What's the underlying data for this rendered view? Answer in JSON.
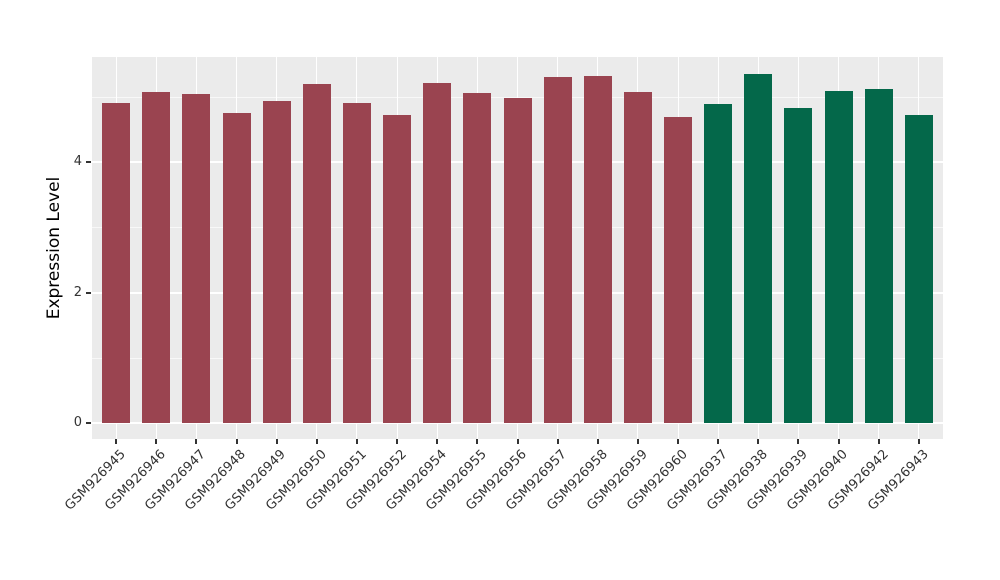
{
  "chart_data": {
    "type": "bar",
    "title": "",
    "xlabel": "",
    "ylabel": "Expression Level",
    "categories": [
      "GSM926945",
      "GSM926946",
      "GSM926947",
      "GSM926948",
      "GSM926949",
      "GSM926950",
      "GSM926951",
      "GSM926952",
      "GSM926954",
      "GSM926955",
      "GSM926956",
      "GSM926957",
      "GSM926958",
      "GSM926959",
      "GSM926960",
      "GSM926937",
      "GSM926938",
      "GSM926939",
      "GSM926940",
      "GSM926942",
      "GSM926943"
    ],
    "values": [
      4.91,
      5.08,
      5.04,
      4.76,
      4.94,
      5.2,
      4.91,
      4.72,
      5.21,
      5.06,
      4.98,
      5.3,
      5.32,
      5.08,
      4.7,
      4.89,
      5.35,
      4.83,
      5.1,
      5.13,
      4.72
    ],
    "bar_colors": [
      "#9A4450",
      "#9A4450",
      "#9A4450",
      "#9A4450",
      "#9A4450",
      "#9A4450",
      "#9A4450",
      "#9A4450",
      "#9A4450",
      "#9A4450",
      "#9A4450",
      "#9A4450",
      "#9A4450",
      "#9A4450",
      "#9A4450",
      "#04684A",
      "#04684A",
      "#04684A",
      "#04684A",
      "#04684A",
      "#04684A"
    ],
    "group_colors": {
      "group1_red": "#9A4450",
      "group2_green": "#04684A"
    },
    "yticks": [
      0,
      2,
      4
    ],
    "ytick_labels": [
      "0",
      "2",
      "4"
    ],
    "yminor_ticks": [
      1,
      3,
      5
    ],
    "ylim": [
      0,
      5.61
    ],
    "bar_width_fraction": 0.7,
    "legend_position": "none",
    "grid": true,
    "panel_background": "#EBEBEB",
    "grid_color": "#FFFFFF",
    "axis_text_color": "#333333",
    "axis_title_color": "#000000"
  }
}
